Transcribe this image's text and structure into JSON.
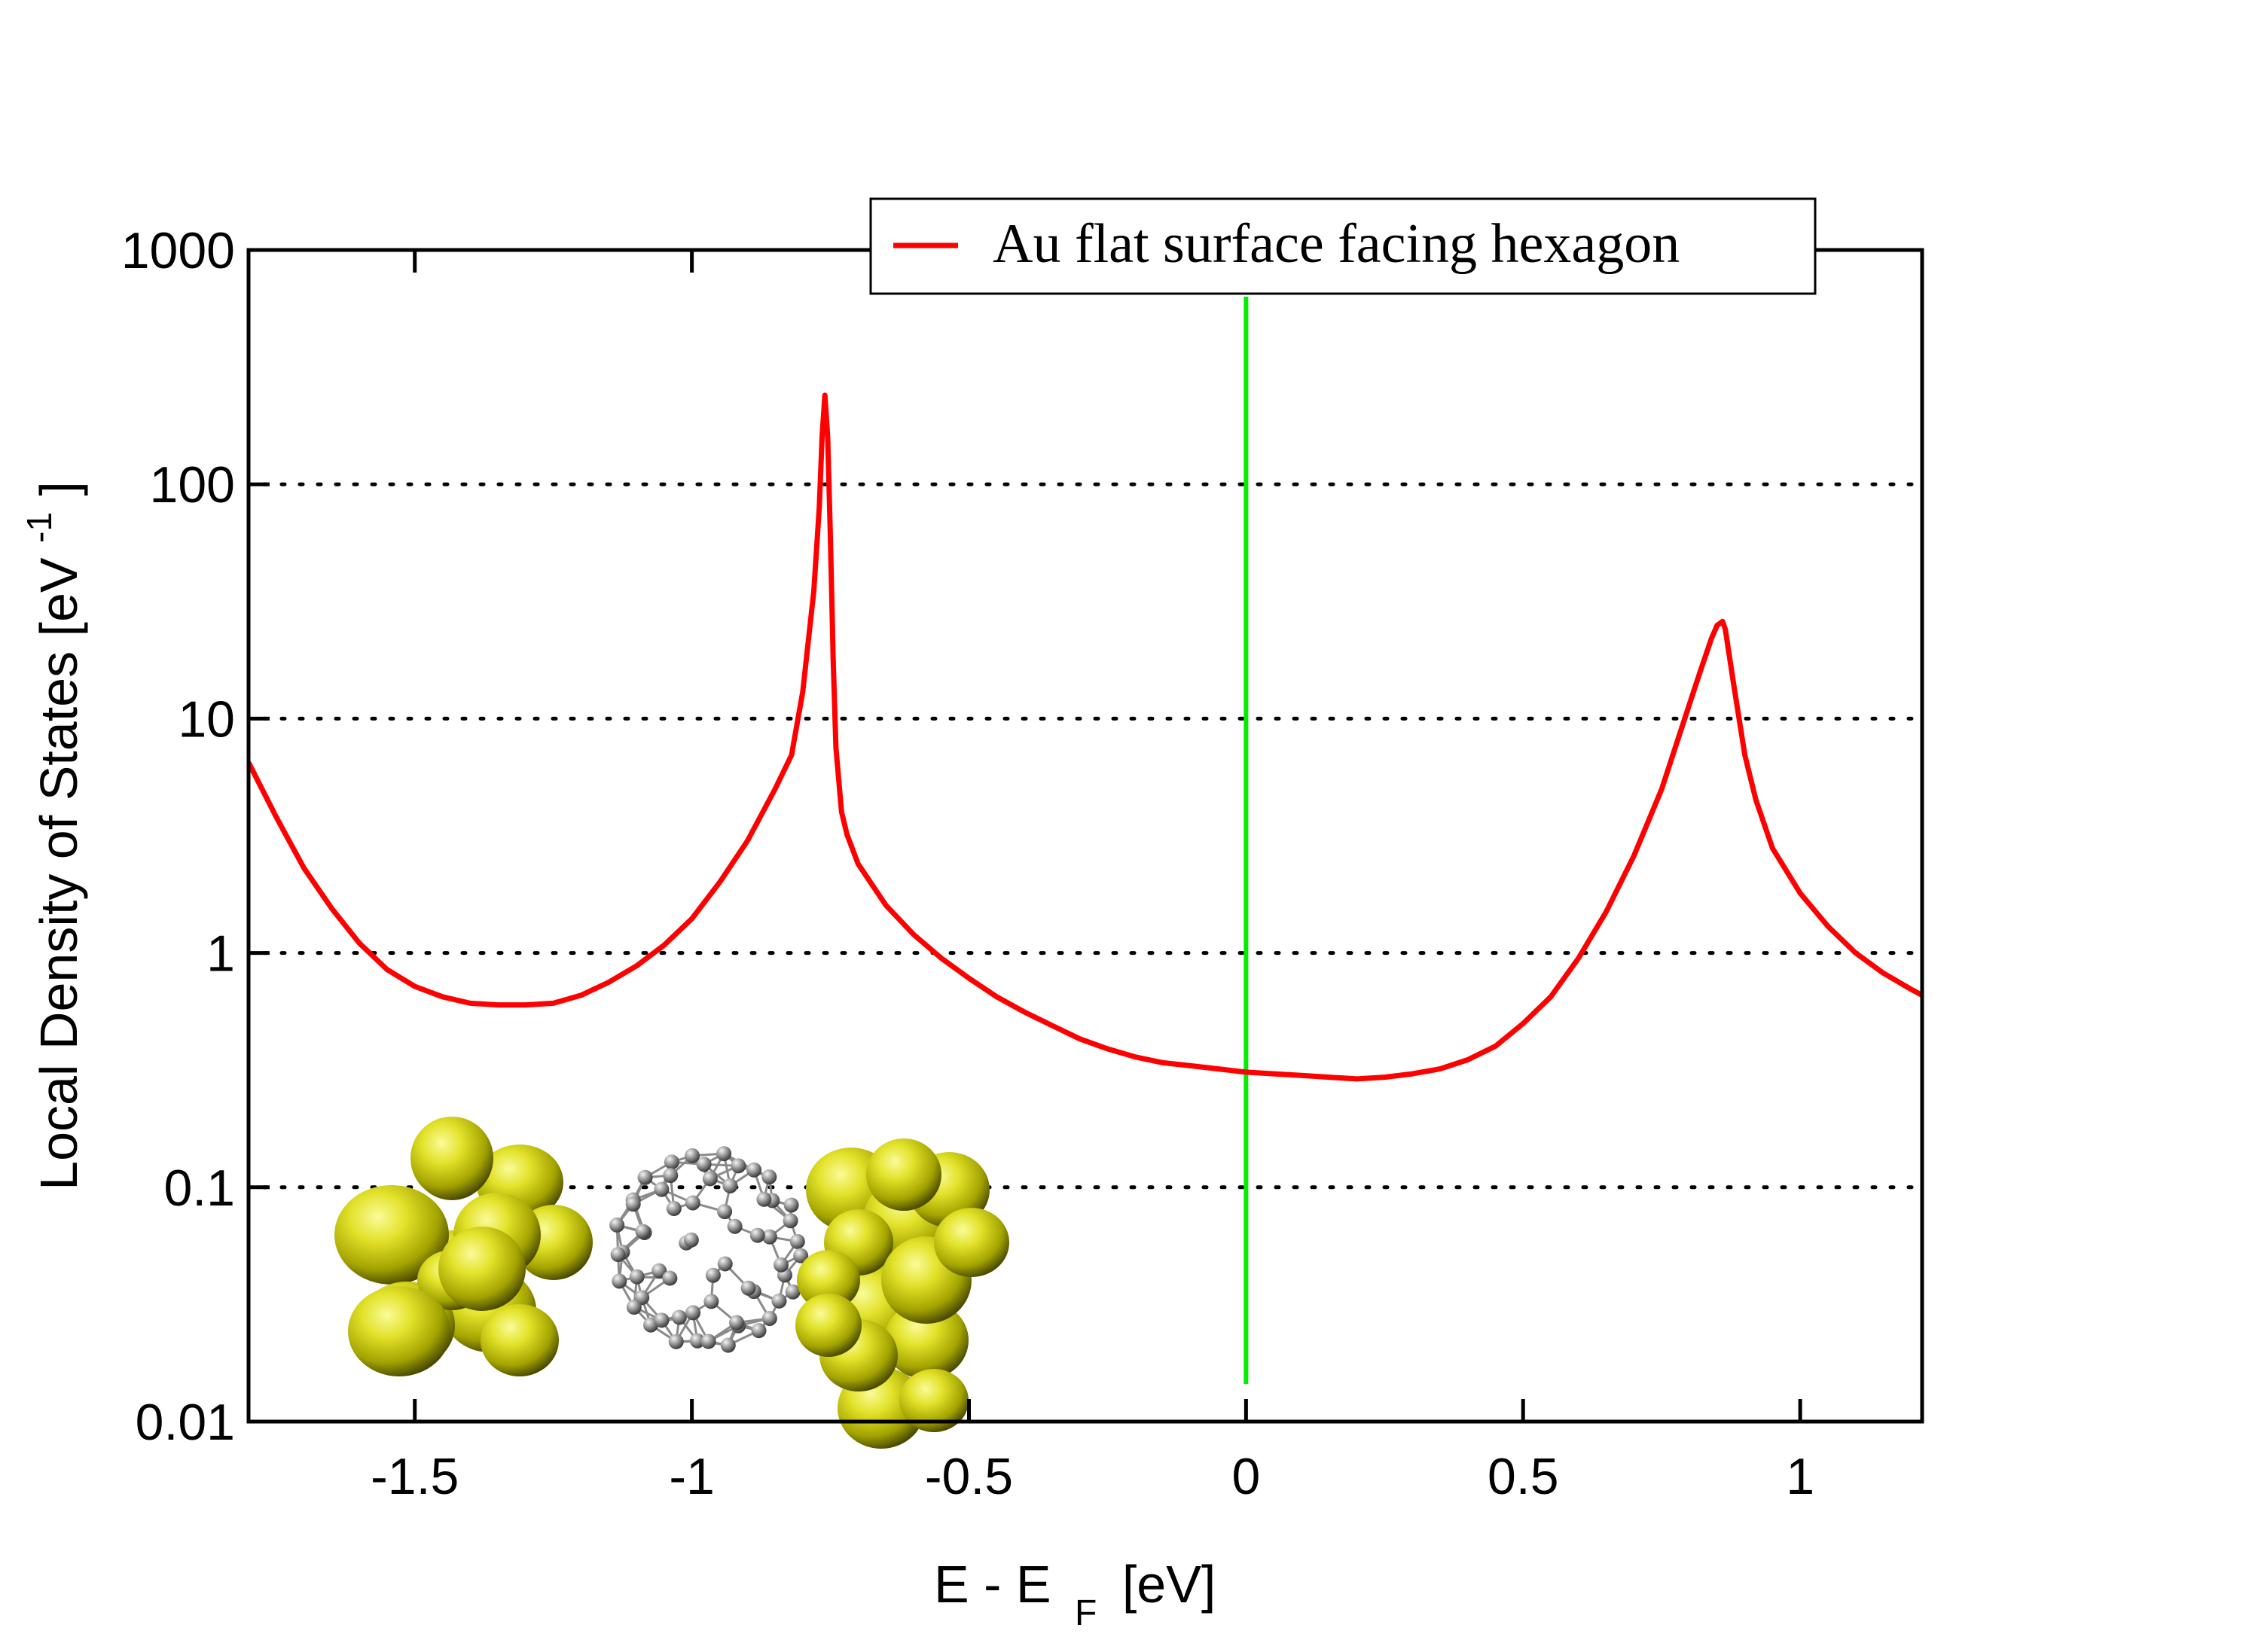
{
  "chart_data": {
    "type": "line",
    "xscale": "linear",
    "yscale": "log",
    "xlim": [
      -1.8,
      1.22
    ],
    "ylim": [
      0.01,
      1000
    ],
    "x_ticks": [
      "-1.5",
      "-1",
      "-0.5",
      "0",
      "0.5",
      "1"
    ],
    "x_tick_values": [
      -1.5,
      -1,
      -0.5,
      0,
      0.5,
      1
    ],
    "y_ticks": [
      "1000",
      "100",
      "10",
      "1",
      "0.1",
      "0.01"
    ],
    "y_tick_values": [
      1000,
      100,
      10,
      1,
      0.1,
      0.01
    ],
    "xlabel": {
      "main": "E - E",
      "subscript": "F",
      "unit": "[eV]"
    },
    "ylabel": {
      "main": "Local Density of States [eV",
      "superscript": "-1",
      "close": "]"
    },
    "grid": {
      "horizontal_dotted_at": [
        100,
        10,
        1,
        0.1
      ]
    },
    "legend": {
      "placement": "top-right",
      "entries": [
        "Au flat surface facing hexagon"
      ]
    },
    "series": [
      {
        "name": "Au flat surface facing hexagon",
        "color": "#ff0000",
        "x": [
          -1.8,
          -1.75,
          -1.7,
          -1.65,
          -1.6,
          -1.55,
          -1.5,
          -1.45,
          -1.4,
          -1.35,
          -1.3,
          -1.25,
          -1.2,
          -1.15,
          -1.1,
          -1.05,
          -1.0,
          -0.95,
          -0.9,
          -0.85,
          -0.82,
          -0.8,
          -0.78,
          -0.77,
          -0.765,
          -0.76,
          -0.755,
          -0.75,
          -0.745,
          -0.74,
          -0.73,
          -0.72,
          -0.7,
          -0.65,
          -0.6,
          -0.55,
          -0.5,
          -0.45,
          -0.4,
          -0.35,
          -0.3,
          -0.25,
          -0.2,
          -0.15,
          -0.1,
          -0.05,
          0.0,
          0.05,
          0.1,
          0.15,
          0.2,
          0.25,
          0.3,
          0.35,
          0.4,
          0.45,
          0.5,
          0.55,
          0.6,
          0.65,
          0.7,
          0.75,
          0.8,
          0.82,
          0.84,
          0.85,
          0.86,
          0.865,
          0.87,
          0.88,
          0.9,
          0.92,
          0.95,
          1.0,
          1.05,
          1.1,
          1.15,
          1.2,
          1.22
        ],
        "y": [
          6.5,
          3.8,
          2.3,
          1.55,
          1.1,
          0.85,
          0.72,
          0.65,
          0.61,
          0.6,
          0.6,
          0.61,
          0.66,
          0.75,
          0.88,
          1.08,
          1.4,
          2.0,
          3.0,
          5.0,
          7.0,
          13,
          35,
          80,
          160,
          240,
          160,
          60,
          18,
          7.5,
          4.0,
          3.2,
          2.4,
          1.6,
          1.2,
          0.95,
          0.78,
          0.65,
          0.56,
          0.49,
          0.43,
          0.39,
          0.36,
          0.34,
          0.33,
          0.32,
          0.31,
          0.305,
          0.3,
          0.295,
          0.29,
          0.295,
          0.305,
          0.32,
          0.35,
          0.4,
          0.5,
          0.65,
          0.95,
          1.5,
          2.6,
          5.0,
          11.5,
          16,
          22,
          25,
          26,
          24,
          20,
          14,
          7.0,
          4.5,
          2.8,
          1.8,
          1.3,
          1.0,
          0.82,
          0.7,
          0.66
        ]
      }
    ],
    "reference_line": {
      "x": 0,
      "color": "#00ee00"
    }
  },
  "colors": {
    "gold": "#d4d400",
    "gold_light": "#f8f870",
    "gold_dark": "#5a5a00",
    "carbon": "#9a9a9a"
  }
}
